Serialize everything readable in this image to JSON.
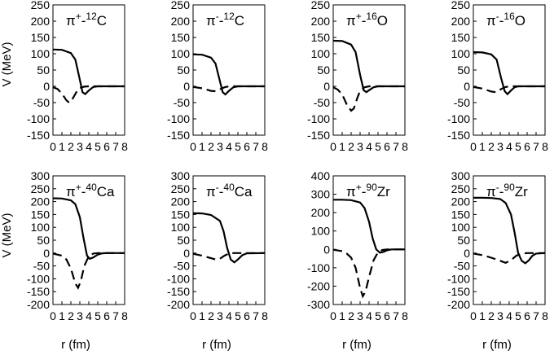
{
  "figure": {
    "ylabel": "V (MeV)",
    "xlabel": "r (fm)"
  },
  "chart_data": [
    {
      "type": "line",
      "panel_label": {
        "base": "π",
        "charge": "+",
        "mass": "12",
        "element": "C"
      },
      "xlim": [
        0,
        8
      ],
      "ylim": [
        -150,
        250
      ],
      "xticks": [
        0,
        1,
        2,
        3,
        4,
        5,
        6,
        7,
        8
      ],
      "yticks": [
        -150,
        -100,
        -50,
        0,
        50,
        100,
        150,
        200,
        250
      ],
      "series": [
        {
          "style": "solid",
          "x": [
            0,
            1,
            2,
            2.5,
            3,
            3.3,
            3.6,
            4,
            4.5,
            5,
            6,
            8
          ],
          "y": [
            113,
            112,
            102,
            82,
            20,
            -18,
            -24,
            -13,
            -2,
            0,
            0,
            0
          ]
        },
        {
          "style": "dashed",
          "x": [
            0,
            0.5,
            1,
            1.5,
            1.8,
            2,
            2.3,
            2.7,
            3,
            3.5,
            4,
            5,
            8
          ],
          "y": [
            -3,
            -8,
            -22,
            -43,
            -50,
            -47,
            -33,
            -14,
            -5,
            -1,
            0,
            0,
            0
          ]
        }
      ]
    },
    {
      "type": "line",
      "panel_label": {
        "base": "π",
        "charge": "-",
        "mass": "12",
        "element": "C"
      },
      "xlim": [
        0,
        8
      ],
      "ylim": [
        -150,
        250
      ],
      "xticks": [
        0,
        1,
        2,
        3,
        4,
        5,
        6,
        7,
        8
      ],
      "yticks": [
        -150,
        -100,
        -50,
        0,
        50,
        100,
        150,
        200,
        250
      ],
      "series": [
        {
          "style": "solid",
          "x": [
            0,
            1,
            2,
            2.5,
            3,
            3.3,
            3.6,
            4,
            4.5,
            5,
            6,
            8
          ],
          "y": [
            98,
            97,
            88,
            70,
            15,
            -18,
            -25,
            -14,
            -3,
            0,
            0,
            0
          ]
        },
        {
          "style": "dashed",
          "x": [
            0,
            1,
            2,
            2.5,
            3,
            3.5,
            4,
            8
          ],
          "y": [
            -2,
            -6,
            -14,
            -15,
            -9,
            -3,
            0,
            0
          ]
        }
      ]
    },
    {
      "type": "line",
      "panel_label": {
        "base": "π",
        "charge": "+",
        "mass": "16",
        "element": "O"
      },
      "xlim": [
        0,
        8
      ],
      "ylim": [
        -150,
        250
      ],
      "xticks": [
        0,
        1,
        2,
        3,
        4,
        5,
        6,
        7,
        8
      ],
      "yticks": [
        -150,
        -100,
        -50,
        0,
        50,
        100,
        150,
        200,
        250
      ],
      "series": [
        {
          "style": "solid",
          "x": [
            0,
            1,
            2,
            2.5,
            3,
            3.4,
            3.7,
            4,
            4.5,
            5,
            6,
            8
          ],
          "y": [
            140,
            139,
            128,
            105,
            35,
            -12,
            -18,
            -12,
            -3,
            0,
            0,
            0
          ]
        },
        {
          "style": "dashed",
          "x": [
            0,
            0.5,
            1,
            1.5,
            2,
            2.3,
            2.7,
            3,
            3.5,
            4,
            5,
            8
          ],
          "y": [
            -3,
            -10,
            -25,
            -55,
            -75,
            -68,
            -35,
            -14,
            -3,
            0,
            0,
            0
          ]
        }
      ]
    },
    {
      "type": "line",
      "panel_label": {
        "base": "π",
        "charge": "-",
        "mass": "16",
        "element": "O"
      },
      "xlim": [
        0,
        8
      ],
      "ylim": [
        -150,
        250
      ],
      "xticks": [
        0,
        1,
        2,
        3,
        4,
        5,
        6,
        7,
        8
      ],
      "yticks": [
        -150,
        -100,
        -50,
        0,
        50,
        100,
        150,
        200,
        250
      ],
      "series": [
        {
          "style": "solid",
          "x": [
            0,
            1,
            2,
            2.6,
            3.1,
            3.5,
            3.8,
            4.2,
            4.6,
            5,
            6,
            8
          ],
          "y": [
            105,
            104,
            98,
            82,
            25,
            -15,
            -24,
            -13,
            -3,
            0,
            0,
            0
          ]
        },
        {
          "style": "dashed",
          "x": [
            0,
            1,
            2,
            2.5,
            3,
            3.5,
            4,
            8
          ],
          "y": [
            -2,
            -7,
            -16,
            -18,
            -10,
            -3,
            0,
            0
          ]
        }
      ]
    },
    {
      "type": "line",
      "panel_label": {
        "base": "π",
        "charge": "+",
        "mass": "40",
        "element": "Ca"
      },
      "xlim": [
        0,
        8
      ],
      "ylim": [
        -200,
        300
      ],
      "xticks": [
        0,
        1,
        2,
        3,
        4,
        5,
        6,
        7,
        8
      ],
      "yticks": [
        -200,
        -150,
        -100,
        -50,
        0,
        50,
        100,
        150,
        200,
        250,
        300
      ],
      "series": [
        {
          "style": "solid",
          "x": [
            0,
            1,
            2,
            2.5,
            3,
            3.4,
            3.8,
            4.1,
            4.5,
            5,
            5.5,
            6,
            8
          ],
          "y": [
            213,
            212,
            205,
            190,
            140,
            60,
            -10,
            -22,
            -17,
            -6,
            -1,
            0,
            0
          ]
        },
        {
          "style": "dashed",
          "x": [
            0,
            1,
            1.5,
            2,
            2.5,
            2.8,
            3.1,
            3.5,
            4,
            4.5,
            5,
            6,
            8
          ],
          "y": [
            -2,
            -10,
            -25,
            -60,
            -118,
            -135,
            -110,
            -50,
            -12,
            -2,
            0,
            0,
            0
          ]
        }
      ]
    },
    {
      "type": "line",
      "panel_label": {
        "base": "π",
        "charge": "-",
        "mass": "40",
        "element": "Ca"
      },
      "xlim": [
        0,
        8
      ],
      "ylim": [
        -200,
        300
      ],
      "xticks": [
        0,
        1,
        2,
        3,
        4,
        5,
        6,
        7,
        8
      ],
      "yticks": [
        -200,
        -150,
        -100,
        -50,
        0,
        50,
        100,
        150,
        200,
        250,
        300
      ],
      "series": [
        {
          "style": "solid",
          "x": [
            0,
            1,
            2,
            3,
            3.4,
            3.8,
            4.2,
            4.6,
            5,
            5.5,
            6,
            8
          ],
          "y": [
            155,
            154,
            148,
            125,
            85,
            20,
            -25,
            -36,
            -25,
            -8,
            -1,
            0
          ]
        },
        {
          "style": "dashed",
          "x": [
            0,
            1,
            2,
            2.5,
            3,
            3.5,
            4,
            4.5,
            8
          ],
          "y": [
            -3,
            -10,
            -20,
            -25,
            -22,
            -10,
            -2,
            0,
            0
          ]
        }
      ]
    },
    {
      "type": "line",
      "panel_label": {
        "base": "π",
        "charge": "+",
        "mass": "90",
        "element": "Zr"
      },
      "xlim": [
        0,
        8
      ],
      "ylim": [
        -300,
        400
      ],
      "xticks": [
        0,
        1,
        2,
        3,
        4,
        5,
        6,
        7,
        8
      ],
      "yticks": [
        -300,
        -200,
        -100,
        0,
        100,
        200,
        300,
        400
      ],
      "series": [
        {
          "style": "solid",
          "x": [
            0,
            1,
            2,
            3,
            3.5,
            4,
            4.4,
            4.8,
            5.2,
            5.6,
            6,
            6.5,
            8
          ],
          "y": [
            270,
            270,
            268,
            255,
            225,
            150,
            60,
            0,
            -18,
            -14,
            -5,
            0,
            0
          ]
        },
        {
          "style": "dashed",
          "x": [
            0,
            1,
            1.5,
            2,
            2.5,
            3,
            3.3,
            3.6,
            4,
            4.5,
            5,
            5.5,
            6,
            8
          ],
          "y": [
            -2,
            -10,
            -22,
            -45,
            -100,
            -210,
            -255,
            -230,
            -150,
            -60,
            -15,
            -3,
            0,
            0
          ]
        }
      ]
    },
    {
      "type": "line",
      "panel_label": {
        "base": "π",
        "charge": "-",
        "mass": "90",
        "element": "Zr"
      },
      "xlim": [
        0,
        8
      ],
      "ylim": [
        -200,
        300
      ],
      "xticks": [
        0,
        1,
        2,
        3,
        4,
        5,
        6,
        7,
        8
      ],
      "yticks": [
        -200,
        -150,
        -100,
        -50,
        0,
        50,
        100,
        150,
        200,
        250,
        300
      ],
      "series": [
        {
          "style": "solid",
          "x": [
            0,
            1,
            2,
            3,
            3.6,
            4.2,
            4.6,
            5,
            5.4,
            5.8,
            6.2,
            6.6,
            7,
            8
          ],
          "y": [
            215,
            215,
            214,
            210,
            195,
            150,
            80,
            0,
            -30,
            -40,
            -28,
            -10,
            -2,
            0
          ]
        },
        {
          "style": "dashed",
          "x": [
            0,
            1,
            2,
            3,
            3.6,
            4.2,
            4.8,
            5.4,
            6,
            8
          ],
          "y": [
            -2,
            -8,
            -18,
            -30,
            -38,
            -28,
            -10,
            -2,
            0,
            0
          ]
        }
      ]
    }
  ]
}
